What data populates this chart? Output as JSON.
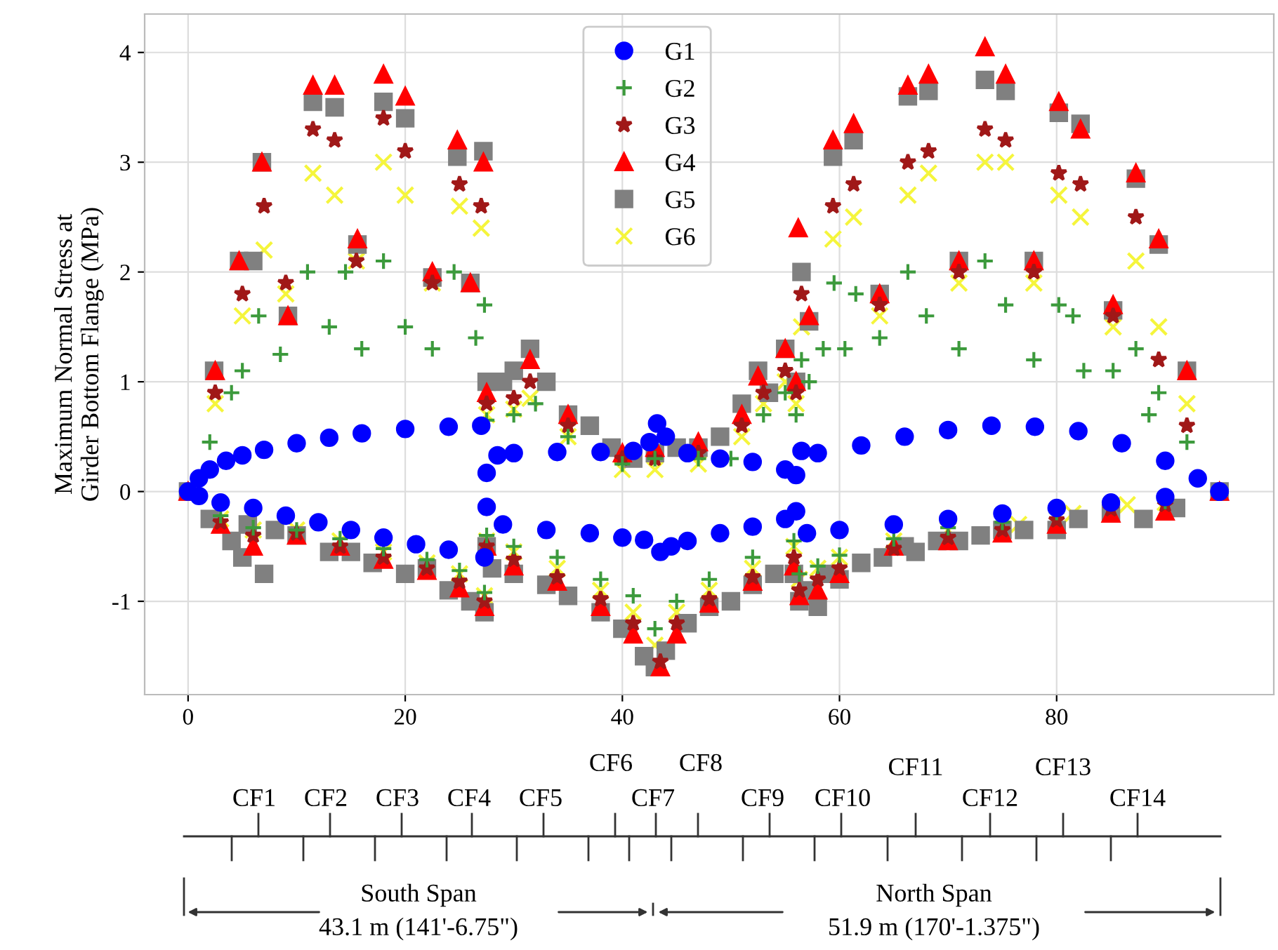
{
  "chart_data": {
    "type": "scatter",
    "ylabel": "Maximum Normal Stress at\nGirder Bottom Flange (MPa)",
    "xlim": [
      -4,
      100
    ],
    "ylim": [
      -1.85,
      4.35
    ],
    "xticks": [
      0,
      20,
      40,
      60,
      80
    ],
    "yticks": [
      -1,
      0,
      1,
      2,
      3,
      4
    ],
    "grid": true,
    "legend": "top",
    "annotations": [
      "CF1",
      "CF2",
      "CF3",
      "CF4",
      "CF5",
      "CF6",
      "CF7",
      "CF8",
      "CF9",
      "CF10",
      "CF11",
      "CF12",
      "CF13",
      "CF14",
      "South Span",
      "43.1 m (141'-6.75\")",
      "North Span",
      "51.9 m (170'-1.375\")"
    ],
    "series": [
      {
        "name": "G1",
        "color": "#0000ff",
        "marker": "circle",
        "x": [
          0,
          1,
          2,
          3.5,
          5,
          7,
          10,
          13,
          16,
          20,
          24,
          27,
          27.5,
          28.5,
          30,
          34,
          38,
          41,
          42.5,
          43.2,
          44,
          46,
          49,
          52,
          55,
          56,
          56.5,
          58,
          62,
          66,
          70,
          74,
          78,
          82,
          86,
          90,
          93,
          95,
          1,
          3,
          6,
          9,
          12,
          15,
          18,
          21,
          24,
          27.3,
          27.5,
          29,
          33,
          37,
          40,
          42,
          43.5,
          44.5,
          46,
          49,
          52,
          55,
          56,
          57,
          60,
          65,
          70,
          75,
          80,
          85,
          90,
          95
        ],
        "values": [
          0,
          0.12,
          0.2,
          0.28,
          0.33,
          0.38,
          0.44,
          0.49,
          0.53,
          0.57,
          0.59,
          0.6,
          0.17,
          0.33,
          0.35,
          0.36,
          0.36,
          0.37,
          0.45,
          0.62,
          0.5,
          0.35,
          0.3,
          0.27,
          0.2,
          0.15,
          0.37,
          0.35,
          0.42,
          0.5,
          0.56,
          0.6,
          0.59,
          0.55,
          0.44,
          0.28,
          0.12,
          0,
          -0.04,
          -0.1,
          -0.15,
          -0.22,
          -0.28,
          -0.35,
          -0.42,
          -0.48,
          -0.53,
          -0.6,
          -0.14,
          -0.3,
          -0.35,
          -0.38,
          -0.42,
          -0.44,
          -0.55,
          -0.5,
          -0.45,
          -0.38,
          -0.32,
          -0.25,
          -0.18,
          -0.38,
          -0.35,
          -0.3,
          -0.25,
          -0.2,
          -0.15,
          -0.1,
          -0.05,
          0
        ]
      },
      {
        "name": "G2",
        "color": "#3c9a3c",
        "marker": "plus",
        "x": [
          2,
          4,
          5,
          6.5,
          8.5,
          11,
          13,
          14.5,
          16,
          18,
          20,
          22.5,
          24.5,
          26.5,
          27.3,
          27.5,
          30,
          32,
          35,
          40,
          43,
          47,
          50,
          53,
          55,
          56,
          56.5,
          57.2,
          58.5,
          59.5,
          60.5,
          61.5,
          63.7,
          66.3,
          68,
          71,
          73.4,
          75.3,
          77.9,
          80.2,
          81.5,
          82.5,
          85.2,
          87.3,
          88.5,
          89.4,
          92,
          3,
          6,
          10,
          14,
          18,
          22,
          25,
          27.3,
          27.5,
          30,
          34,
          38,
          41,
          43,
          45,
          48,
          52,
          55.8,
          56.3,
          58,
          60,
          65,
          70,
          75,
          80,
          90
        ],
        "values": [
          0.45,
          0.9,
          1.1,
          1.6,
          1.25,
          2.0,
          1.5,
          2.0,
          1.3,
          2.1,
          1.5,
          1.3,
          2.0,
          1.4,
          1.7,
          0.65,
          0.7,
          0.8,
          0.5,
          0.25,
          0.3,
          0.3,
          0.3,
          0.7,
          0.9,
          0.7,
          1.2,
          1.0,
          1.3,
          1.9,
          1.3,
          1.8,
          1.4,
          2.0,
          1.6,
          1.3,
          2.1,
          1.7,
          1.2,
          1.7,
          1.6,
          1.1,
          1.1,
          1.3,
          0.7,
          0.9,
          0.45,
          -0.22,
          -0.33,
          -0.35,
          -0.43,
          -0.52,
          -0.62,
          -0.72,
          -0.92,
          -0.4,
          -0.5,
          -0.6,
          -0.8,
          -0.95,
          -1.25,
          -1.0,
          -0.8,
          -0.6,
          -0.45,
          -0.75,
          -0.68,
          -0.58,
          -0.43,
          -0.33,
          -0.28,
          -0.19,
          -0.09
        ]
      },
      {
        "name": "G3",
        "color": "#a01818",
        "marker": "star",
        "x": [
          2.5,
          5,
          7,
          9,
          11.5,
          13.5,
          15.5,
          18,
          20,
          22.5,
          25,
          27,
          27.5,
          30,
          31.5,
          35,
          40,
          43,
          47,
          51,
          53,
          55,
          56,
          56.5,
          59.4,
          61.3,
          63.7,
          66.3,
          68.2,
          71,
          73.4,
          75.3,
          77.9,
          80.2,
          82.2,
          85.2,
          87.3,
          89.4,
          92,
          3,
          6,
          10,
          14,
          18,
          22,
          25,
          27.3,
          27.5,
          30,
          34,
          38,
          41,
          43.5,
          45,
          48,
          52,
          55.8,
          56.3,
          58,
          60,
          65,
          70,
          75,
          80,
          85,
          90
        ],
        "values": [
          0.9,
          1.8,
          2.6,
          1.9,
          3.3,
          3.2,
          2.1,
          3.4,
          3.1,
          1.9,
          2.8,
          2.6,
          0.8,
          0.85,
          1.0,
          0.6,
          0.3,
          0.3,
          0.35,
          0.6,
          0.9,
          1.1,
          0.9,
          1.8,
          2.6,
          2.8,
          1.7,
          3.0,
          3.1,
          2.0,
          3.3,
          3.2,
          2.0,
          2.9,
          2.8,
          1.6,
          2.5,
          1.2,
          0.6,
          -0.28,
          -0.4,
          -0.38,
          -0.5,
          -0.6,
          -0.7,
          -0.82,
          -1.0,
          -0.5,
          -0.62,
          -0.78,
          -0.98,
          -1.2,
          -1.55,
          -1.2,
          -0.98,
          -0.78,
          -0.6,
          -0.9,
          -0.8,
          -0.7,
          -0.52,
          -0.42,
          -0.35,
          -0.26,
          -0.16,
          -0.12
        ]
      },
      {
        "name": "G4",
        "color": "#ff0000",
        "marker": "triangle",
        "x": [
          0,
          2.5,
          4.7,
          6.8,
          9.2,
          11.5,
          13.5,
          15.6,
          18,
          20,
          22.5,
          24.8,
          26,
          27.2,
          27.5,
          31.5,
          35,
          40,
          43,
          47,
          51,
          52.5,
          55,
          56,
          56.2,
          57.2,
          59.4,
          61.3,
          63.7,
          66.3,
          68.2,
          71,
          73.4,
          75.3,
          77.9,
          80.2,
          82.2,
          85.2,
          87.3,
          89.4,
          92,
          95,
          3,
          6,
          10,
          14,
          18,
          22,
          25,
          27.3,
          27.5,
          30,
          34,
          38,
          41,
          43.5,
          45,
          48,
          52,
          55.8,
          56.3,
          58,
          60,
          65,
          70,
          75,
          80,
          85,
          90
        ],
        "values": [
          0,
          1.1,
          2.1,
          3.0,
          1.6,
          3.7,
          3.7,
          2.3,
          3.8,
          3.6,
          2.0,
          3.2,
          1.9,
          3.0,
          0.9,
          1.2,
          0.7,
          0.35,
          0.4,
          0.45,
          0.7,
          1.05,
          1.3,
          1.0,
          2.4,
          1.6,
          3.2,
          3.35,
          1.8,
          3.7,
          3.8,
          2.1,
          4.05,
          3.8,
          2.1,
          3.55,
          3.3,
          1.7,
          2.9,
          2.3,
          1.1,
          0,
          -0.3,
          -0.5,
          -0.4,
          -0.5,
          -0.62,
          -0.72,
          -0.88,
          -1.05,
          -0.5,
          -0.68,
          -0.82,
          -1.05,
          -1.3,
          -1.6,
          -1.3,
          -1.02,
          -0.82,
          -0.68,
          -0.95,
          -0.9,
          -0.75,
          -0.5,
          -0.45,
          -0.38,
          -0.3,
          -0.2,
          -0.18
        ]
      },
      {
        "name": "G5",
        "color": "#808080",
        "marker": "square",
        "x": [
          0,
          2.4,
          4.7,
          6,
          6.8,
          9.2,
          11.5,
          13.5,
          15.6,
          18,
          20,
          22.5,
          24.8,
          26,
          27.2,
          27.5,
          29,
          30,
          31.5,
          33,
          35,
          37,
          39,
          41,
          43,
          45,
          47,
          49,
          51,
          52.5,
          53.5,
          55,
          56,
          56.5,
          57.2,
          59.4,
          61.3,
          63.7,
          66.3,
          68.2,
          71,
          73.4,
          75.3,
          77.9,
          80.2,
          82.2,
          85.2,
          87.3,
          89.4,
          92,
          95,
          2,
          4,
          5,
          5.5,
          7,
          8,
          10,
          13,
          15,
          17,
          20,
          22,
          24,
          26,
          27.3,
          27.5,
          28,
          30,
          33,
          35,
          38,
          40,
          42,
          43,
          44,
          46,
          48,
          50,
          52,
          54,
          55.8,
          56.3,
          57,
          58,
          59,
          60,
          62,
          64,
          66,
          67,
          69,
          71,
          73,
          75,
          77,
          80,
          82,
          85,
          88,
          91
        ],
        "values": [
          0,
          1.1,
          2.1,
          2.1,
          3.0,
          1.6,
          3.55,
          3.5,
          2.25,
          3.55,
          3.4,
          1.95,
          3.05,
          1.9,
          3.1,
          1.0,
          1.0,
          1.1,
          1.3,
          1.0,
          0.7,
          0.6,
          0.4,
          0.3,
          0.35,
          0.4,
          0.4,
          0.5,
          0.8,
          1.1,
          0.9,
          1.3,
          1.0,
          2.0,
          1.55,
          3.05,
          3.2,
          1.8,
          3.6,
          3.65,
          2.1,
          3.75,
          3.65,
          2.1,
          3.45,
          3.35,
          1.65,
          2.85,
          2.25,
          1.1,
          0,
          -0.25,
          -0.45,
          -0.6,
          -0.3,
          -0.75,
          -0.35,
          -0.4,
          -0.55,
          -0.55,
          -0.65,
          -0.75,
          -0.7,
          -0.9,
          -1.0,
          -1.1,
          -0.5,
          -0.7,
          -0.75,
          -0.85,
          -0.95,
          -1.1,
          -1.25,
          -1.5,
          -1.6,
          -1.45,
          -1.2,
          -1.05,
          -1.0,
          -0.85,
          -0.75,
          -0.75,
          -1.0,
          -0.9,
          -1.05,
          -0.75,
          -0.8,
          -0.65,
          -0.6,
          -0.5,
          -0.55,
          -0.45,
          -0.45,
          -0.4,
          -0.35,
          -0.35,
          -0.35,
          -0.25,
          -0.2,
          -0.25,
          -0.15
        ]
      },
      {
        "name": "G6",
        "color": "#f5f53c",
        "marker": "cross",
        "x": [
          2.5,
          5,
          7,
          9,
          11.5,
          13.5,
          15.5,
          18,
          20,
          22.5,
          25,
          27,
          27.5,
          30,
          31.5,
          35,
          40,
          43,
          47,
          51,
          53,
          55,
          56,
          56.5,
          59.4,
          61.3,
          63.7,
          66.3,
          68.2,
          71,
          73.4,
          75.3,
          77.9,
          80.2,
          82.2,
          85.2,
          87.3,
          89.4,
          92,
          3,
          6,
          10,
          14,
          18,
          22,
          25,
          27.3,
          27.5,
          30,
          34,
          38,
          41,
          43,
          45,
          48,
          52,
          55.8,
          56.3,
          58,
          60,
          65,
          70,
          76.5,
          81.5,
          86.5,
          90
        ],
        "values": [
          0.8,
          1.6,
          2.2,
          1.8,
          2.9,
          2.7,
          2.1,
          3.0,
          2.7,
          1.9,
          2.6,
          2.4,
          0.7,
          0.75,
          0.85,
          0.5,
          0.2,
          0.2,
          0.25,
          0.5,
          0.8,
          1.0,
          0.8,
          1.5,
          2.3,
          2.5,
          1.6,
          2.7,
          2.9,
          1.9,
          3.0,
          3.0,
          1.9,
          2.7,
          2.5,
          1.5,
          2.1,
          1.5,
          0.8,
          -0.25,
          -0.35,
          -0.35,
          -0.45,
          -0.55,
          -0.65,
          -0.75,
          -0.95,
          -0.45,
          -0.55,
          -0.7,
          -0.9,
          -1.1,
          -1.4,
          -1.1,
          -0.9,
          -0.7,
          -0.5,
          -0.8,
          -0.7,
          -0.6,
          -0.45,
          -0.35,
          -0.3,
          -0.2,
          -0.12,
          -0.1
        ]
      }
    ]
  }
}
